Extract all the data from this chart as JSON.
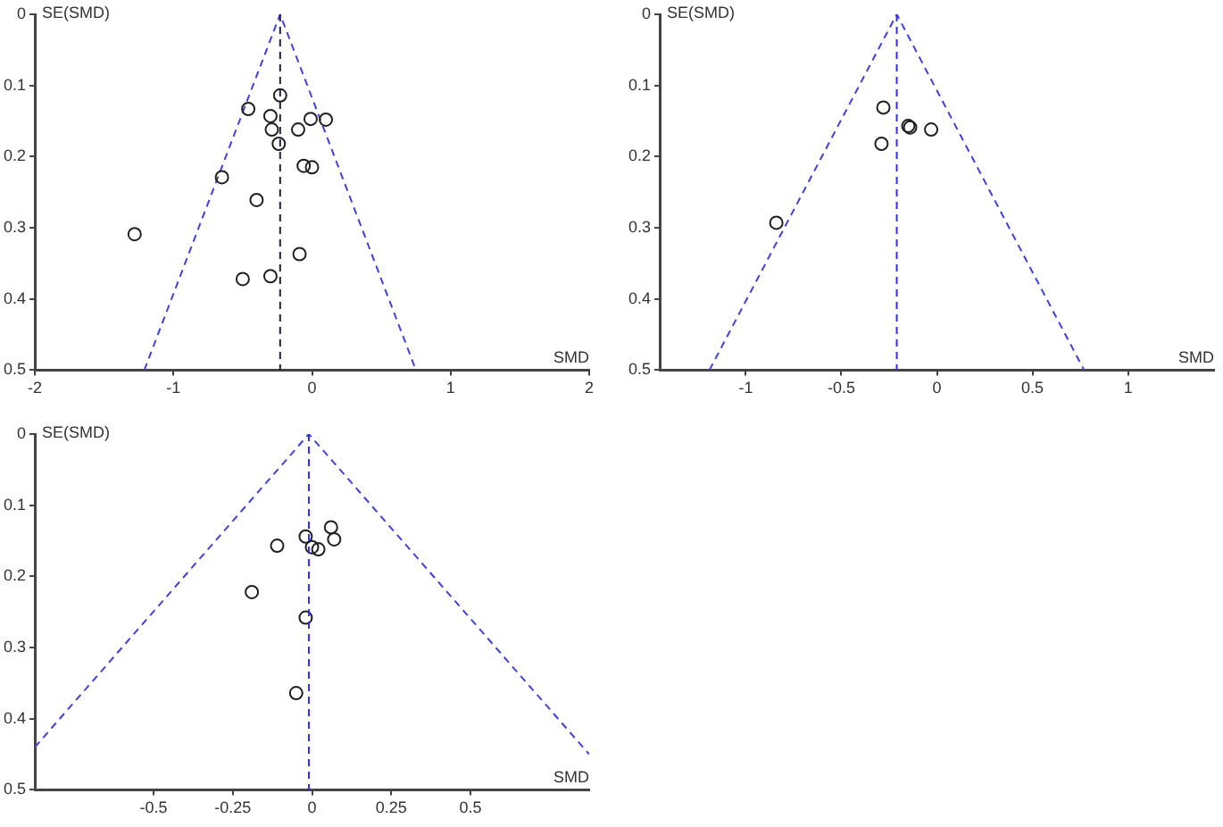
{
  "chart_data": [
    {
      "type": "scatter",
      "xlabel": "SMD",
      "ylabel": "SE(SMD)",
      "xlim": [
        -2,
        2
      ],
      "xticks": [
        -2,
        -1,
        0,
        1,
        2
      ],
      "ylim": [
        0.5,
        0
      ],
      "yticks": [
        0,
        0.1,
        0.2,
        0.3,
        0.4,
        0.5
      ],
      "grid": false,
      "legend": false,
      "marker": "circle",
      "ref_lines": [
        {
          "axis": "x",
          "value": -0.23,
          "color": "#202040",
          "line_style": "dashed"
        }
      ],
      "series": [
        {
          "color": "#202020",
          "x": [
            -0.23,
            -0.46,
            -0.3,
            -0.01,
            0.1,
            -0.29,
            -0.1,
            -0.24,
            -0.06,
            0.0,
            -0.65,
            -0.4,
            -1.28,
            -0.09,
            -0.3,
            -0.5
          ],
          "values": [
            0.114,
            0.133,
            0.143,
            0.147,
            0.148,
            0.162,
            0.162,
            0.182,
            0.213,
            0.215,
            0.229,
            0.261,
            0.309,
            0.337,
            0.368,
            0.372
          ]
        },
        {
          "type": "line",
          "marker": "none",
          "line_style": "dashed",
          "color": "#4040e0",
          "x": [
            -1.21,
            -0.23,
            0.75
          ],
          "values": [
            0.5,
            0,
            0.5
          ]
        }
      ]
    },
    {
      "type": "scatter",
      "xlabel": "SMD",
      "ylabel": "SE(SMD)",
      "xlim": [
        -1.45,
        1.45
      ],
      "xticks": [
        -1,
        -0.5,
        0,
        0.5,
        1
      ],
      "ylim": [
        0.5,
        0
      ],
      "yticks": [
        0,
        0.1,
        0.2,
        0.3,
        0.4,
        0.5
      ],
      "grid": false,
      "legend": false,
      "marker": "circle",
      "ref_lines": [
        {
          "axis": "x",
          "value": -0.21,
          "color": "#3030f0",
          "line_style": "dashed"
        }
      ],
      "series": [
        {
          "color": "#202020",
          "x": [
            -0.28,
            -0.15,
            -0.14,
            -0.03,
            -0.29,
            -0.84
          ],
          "values": [
            0.131,
            0.157,
            0.159,
            0.162,
            0.182,
            0.293
          ]
        },
        {
          "type": "line",
          "marker": "none",
          "line_style": "dashed",
          "color": "#4040e0",
          "x": [
            -1.19,
            -0.21,
            0.77
          ],
          "values": [
            0.5,
            0,
            0.5
          ]
        }
      ]
    },
    {
      "type": "scatter",
      "xlabel": "SMD",
      "ylabel": "SE(SMD)",
      "xlim": [
        -0.875,
        0.875
      ],
      "xticks": [
        -0.5,
        -0.25,
        0,
        0.25,
        0.5
      ],
      "ylim": [
        0.5,
        0
      ],
      "yticks": [
        0,
        0.1,
        0.2,
        0.3,
        0.4,
        0.5
      ],
      "grid": false,
      "legend": false,
      "marker": "circle",
      "ref_lines": [
        {
          "axis": "x",
          "value": -0.01,
          "color": "#3030f0",
          "line_style": "dashed"
        }
      ],
      "series": [
        {
          "color": "#202020",
          "x": [
            0.06,
            -0.02,
            0.07,
            -0.11,
            0.0,
            0.02,
            -0.19,
            -0.02,
            -0.05
          ],
          "values": [
            0.131,
            0.144,
            0.148,
            0.157,
            0.159,
            0.162,
            0.222,
            0.258,
            0.364
          ]
        },
        {
          "type": "line",
          "marker": "none",
          "line_style": "dashed",
          "color": "#4040e0",
          "x": [
            -0.875,
            -0.01,
            0.875
          ],
          "values": [
            0.44,
            0,
            0.45
          ]
        }
      ]
    }
  ]
}
